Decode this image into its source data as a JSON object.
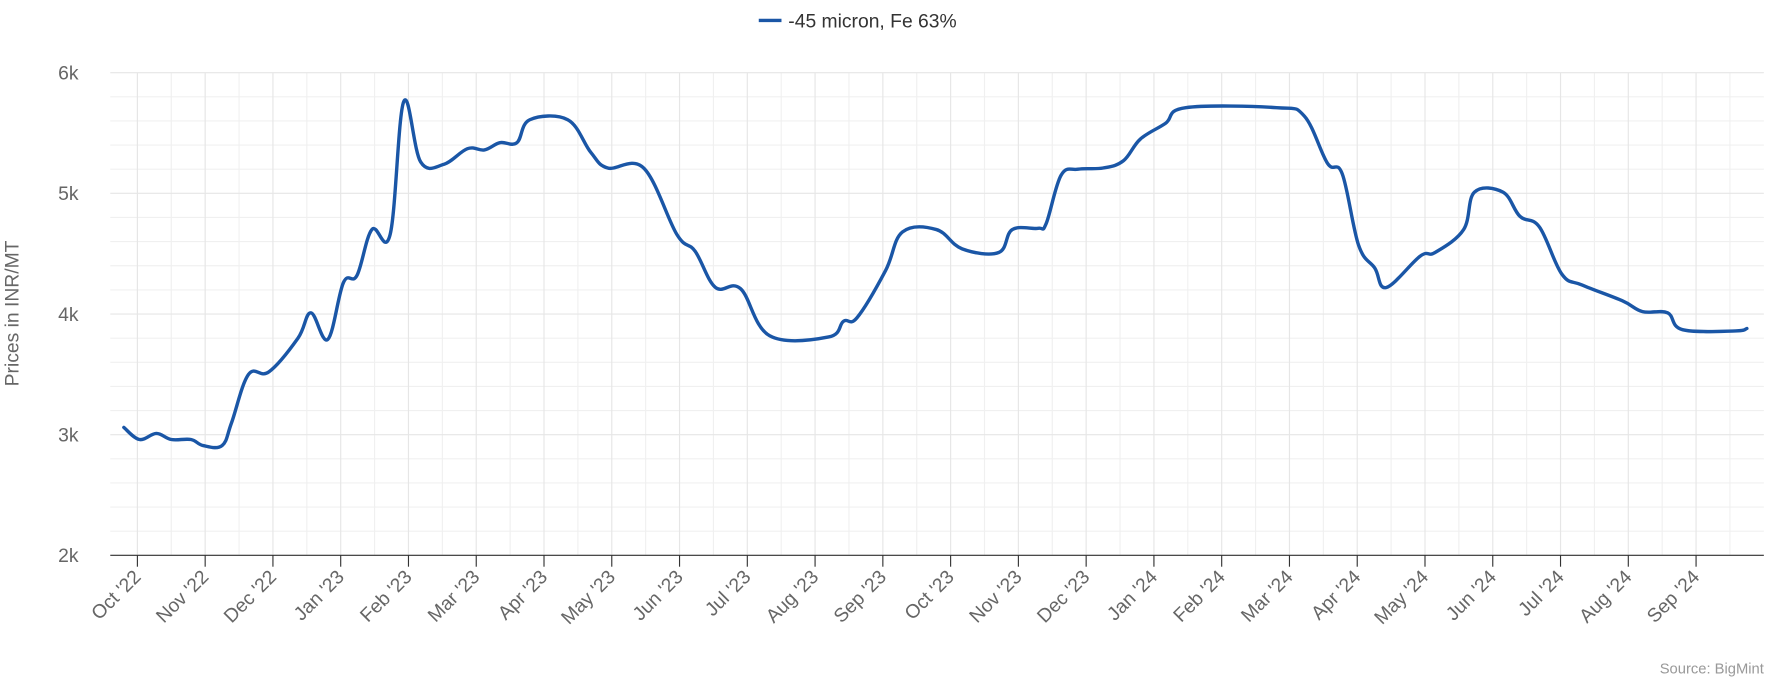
{
  "chart_data": {
    "type": "line",
    "y_label": "Prices in INR/MT",
    "source": "Source: BigMint",
    "legend": "top",
    "grid": true,
    "xlim": [
      -0.4,
      24
    ],
    "ylim": [
      2000,
      6000
    ],
    "yticks": [
      {
        "value": 2000,
        "label": "2k"
      },
      {
        "value": 3000,
        "label": "3k"
      },
      {
        "value": 4000,
        "label": "4k"
      },
      {
        "value": 5000,
        "label": "5k"
      },
      {
        "value": 6000,
        "label": "6k"
      }
    ],
    "xticks": [
      {
        "value": 0,
        "label": "Oct '22"
      },
      {
        "value": 1,
        "label": "Nov '22"
      },
      {
        "value": 2,
        "label": "Dec '22"
      },
      {
        "value": 3,
        "label": "Jan '23"
      },
      {
        "value": 4,
        "label": "Feb '23"
      },
      {
        "value": 5,
        "label": "Mar '23"
      },
      {
        "value": 6,
        "label": "Apr '23"
      },
      {
        "value": 7,
        "label": "May '23"
      },
      {
        "value": 8,
        "label": "Jun '23"
      },
      {
        "value": 9,
        "label": "Jul '23"
      },
      {
        "value": 10,
        "label": "Aug '23"
      },
      {
        "value": 11,
        "label": "Sep '23"
      },
      {
        "value": 12,
        "label": "Oct '23"
      },
      {
        "value": 13,
        "label": "Nov '23"
      },
      {
        "value": 14,
        "label": "Dec '23"
      },
      {
        "value": 15,
        "label": "Jan '24"
      },
      {
        "value": 16,
        "label": "Feb '24"
      },
      {
        "value": 17,
        "label": "Mar '24"
      },
      {
        "value": 18,
        "label": "Apr '24"
      },
      {
        "value": 19,
        "label": "May '24"
      },
      {
        "value": 20,
        "label": "Jun '24"
      },
      {
        "value": 21,
        "label": "Jul '24"
      },
      {
        "value": 22,
        "label": "Aug '24"
      },
      {
        "value": 23,
        "label": "Sep '24"
      }
    ],
    "x": [
      -0.2,
      0.03,
      0.28,
      0.5,
      0.79,
      0.97,
      1.25,
      1.39,
      1.64,
      1.94,
      2.37,
      2.56,
      2.81,
      3.04,
      3.24,
      3.46,
      3.73,
      3.93,
      4.18,
      4.52,
      4.87,
      5.12,
      5.35,
      5.6,
      5.79,
      6.35,
      6.69,
      6.94,
      7.47,
      7.96,
      8.23,
      8.53,
      8.9,
      9.33,
      10.2,
      10.42,
      10.62,
      11.04,
      11.29,
      11.79,
      12.17,
      12.71,
      12.91,
      13.29,
      13.41,
      13.63,
      13.88,
      14.25,
      14.55,
      14.8,
      15.17,
      15.47,
      16.81,
      17.22,
      17.56,
      17.78,
      18.02,
      18.26,
      18.43,
      18.93,
      19.15,
      19.57,
      19.73,
      20.15,
      20.4,
      20.69,
      21.02,
      21.32,
      21.91,
      22.21,
      22.58,
      22.8,
      23.58,
      23.75
    ],
    "series": [
      {
        "name": "-45 micron, Fe 63%",
        "color": "#1a56a6",
        "values": [
          3060,
          2960,
          3010,
          2960,
          2960,
          2910,
          2910,
          3100,
          3500,
          3520,
          3800,
          4010,
          3790,
          4260,
          4320,
          4700,
          4660,
          5760,
          5260,
          5240,
          5370,
          5360,
          5420,
          5420,
          5610,
          5610,
          5340,
          5210,
          5210,
          4660,
          4520,
          4220,
          4210,
          3820,
          3810,
          3940,
          3970,
          4360,
          4680,
          4700,
          4540,
          4510,
          4700,
          4710,
          4750,
          5150,
          5200,
          5210,
          5270,
          5450,
          5580,
          5710,
          5710,
          5640,
          5250,
          5160,
          4570,
          4380,
          4220,
          4480,
          4510,
          4700,
          5010,
          5010,
          4810,
          4720,
          4330,
          4240,
          4110,
          4020,
          4010,
          3870,
          3860,
          3880
        ]
      }
    ]
  }
}
